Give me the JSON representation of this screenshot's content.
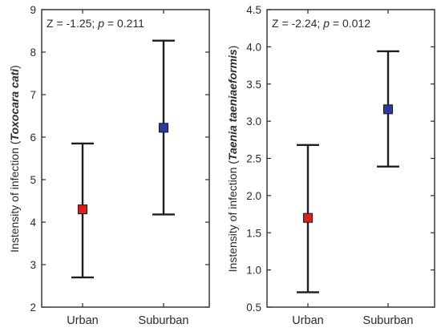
{
  "chart_data": [
    {
      "type": "scatter",
      "error_bars": true,
      "categories": [
        "Urban",
        "Suburban"
      ],
      "series": [
        {
          "values": [
            4.3,
            6.22
          ],
          "lower": [
            2.7,
            4.18
          ],
          "upper": [
            5.85,
            8.27
          ],
          "colors": [
            "#e21b1b",
            "#2a3aa3"
          ]
        }
      ],
      "ylabel_prefix": "Instensity of infection (",
      "ylabel_species": "Toxocara cati",
      "ylabel_suffix": ")",
      "ylim": [
        2,
        9
      ],
      "yticks": [
        2,
        3,
        4,
        5,
        6,
        7,
        8,
        9
      ],
      "ytick_labels": [
        "2",
        "3",
        "4",
        "5",
        "6",
        "7",
        "8",
        "9"
      ],
      "annotation": {
        "z_text": "Z = -1.25; ",
        "p_symbol": "p",
        "p_text": " = 0.211"
      },
      "grid": false
    },
    {
      "type": "scatter",
      "error_bars": true,
      "categories": [
        "Urban",
        "Suburban"
      ],
      "series": [
        {
          "values": [
            1.7,
            3.16
          ],
          "lower": [
            0.7,
            2.39
          ],
          "upper": [
            2.68,
            3.94
          ],
          "colors": [
            "#e21b1b",
            "#2a3aa3"
          ]
        }
      ],
      "ylabel_prefix": "Instensity of infection (",
      "ylabel_species": "Taenia taeniaeformis",
      "ylabel_suffix": ")",
      "ylim": [
        0.5,
        4.5
      ],
      "yticks": [
        0.5,
        1.0,
        1.5,
        2.0,
        2.5,
        3.0,
        3.5,
        4.0,
        4.5
      ],
      "ytick_labels": [
        "0.5",
        "1.0",
        "1.5",
        "2.0",
        "2.5",
        "3.0",
        "3.5",
        "4.0",
        "4.5"
      ],
      "annotation": {
        "z_text": "Z = -2.24; ",
        "p_symbol": "p",
        "p_text": " = 0.012"
      },
      "grid": false
    }
  ]
}
